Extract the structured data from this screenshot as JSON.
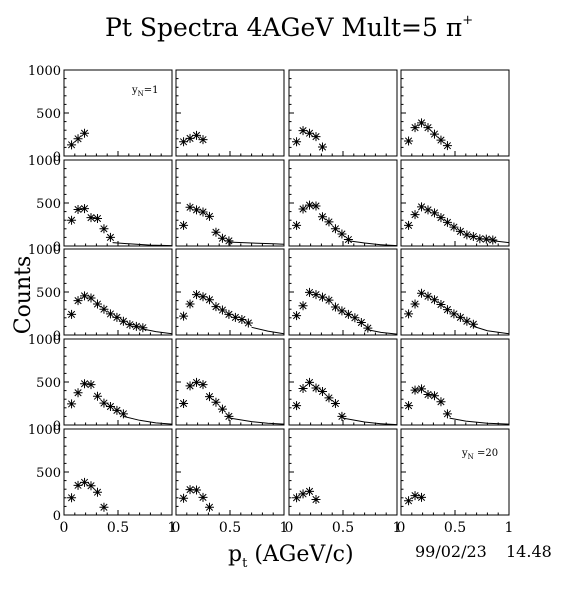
{
  "title_main": "Pt Spectra 4AGeV Mult=5 π",
  "title_sup": "+",
  "xlabel_main": "p",
  "xlabel_sub": "t",
  "xlabel_rest": " (AGeV/c)",
  "ylabel": "Counts",
  "stamp_date": "99/02/23",
  "stamp_time": "14.48",
  "annotation_first": {
    "main": "y",
    "sub": "N",
    "rest": "=1"
  },
  "annotation_last": {
    "main": "y",
    "sub": "N",
    "rest": " =20"
  },
  "chart_data": {
    "type": "scatter",
    "grid_rows": 5,
    "grid_cols": 4,
    "xlim": [
      0,
      1
    ],
    "ylim": [
      0,
      1000
    ],
    "x_ticks": [
      "0",
      "0.5",
      "1"
    ],
    "y_ticks": [
      "0",
      "500",
      "1000"
    ],
    "marker": "asterisk",
    "panels": [
      {
        "points": [
          [
            0.07,
            130
          ],
          [
            0.13,
            200
          ],
          [
            0.19,
            265
          ]
        ],
        "line": []
      },
      {
        "points": [
          [
            0.07,
            165
          ],
          [
            0.13,
            205
          ],
          [
            0.19,
            240
          ],
          [
            0.25,
            190
          ]
        ],
        "line": []
      },
      {
        "points": [
          [
            0.07,
            165
          ],
          [
            0.13,
            295
          ],
          [
            0.19,
            265
          ],
          [
            0.25,
            225
          ],
          [
            0.31,
            105
          ]
        ],
        "line": []
      },
      {
        "points": [
          [
            0.07,
            175
          ],
          [
            0.13,
            330
          ],
          [
            0.19,
            385
          ],
          [
            0.25,
            330
          ],
          [
            0.31,
            255
          ],
          [
            0.37,
            185
          ],
          [
            0.43,
            120
          ]
        ],
        "line": []
      },
      {
        "points": [
          [
            0.07,
            300
          ],
          [
            0.13,
            425
          ],
          [
            0.19,
            435
          ],
          [
            0.25,
            330
          ],
          [
            0.31,
            320
          ],
          [
            0.37,
            200
          ],
          [
            0.43,
            100
          ]
        ],
        "line": [
          [
            0.45,
            40
          ],
          [
            0.6,
            25
          ],
          [
            0.8,
            10
          ],
          [
            1.0,
            5
          ]
        ]
      },
      {
        "points": [
          [
            0.07,
            240
          ],
          [
            0.13,
            450
          ],
          [
            0.19,
            420
          ],
          [
            0.25,
            395
          ],
          [
            0.31,
            345
          ],
          [
            0.37,
            160
          ],
          [
            0.43,
            90
          ],
          [
            0.49,
            60
          ]
        ],
        "line": [
          [
            0.5,
            45
          ],
          [
            0.7,
            35
          ],
          [
            0.9,
            25
          ],
          [
            1.0,
            20
          ]
        ]
      },
      {
        "points": [
          [
            0.07,
            240
          ],
          [
            0.13,
            430
          ],
          [
            0.19,
            475
          ],
          [
            0.25,
            465
          ],
          [
            0.31,
            340
          ],
          [
            0.37,
            280
          ],
          [
            0.43,
            200
          ],
          [
            0.49,
            140
          ],
          [
            0.55,
            75
          ]
        ],
        "line": [
          [
            0.55,
            60
          ],
          [
            0.7,
            35
          ],
          [
            0.85,
            15
          ],
          [
            1.0,
            5
          ]
        ]
      },
      {
        "points": [
          [
            0.07,
            240
          ],
          [
            0.13,
            365
          ],
          [
            0.19,
            455
          ],
          [
            0.25,
            420
          ],
          [
            0.31,
            385
          ],
          [
            0.37,
            330
          ],
          [
            0.43,
            275
          ],
          [
            0.49,
            220
          ],
          [
            0.55,
            170
          ],
          [
            0.61,
            130
          ],
          [
            0.67,
            110
          ],
          [
            0.73,
            85
          ],
          [
            0.79,
            80
          ],
          [
            0.85,
            70
          ]
        ],
        "line": [
          [
            0.85,
            60
          ],
          [
            1.0,
            40
          ]
        ]
      },
      {
        "points": [
          [
            0.07,
            240
          ],
          [
            0.13,
            400
          ],
          [
            0.19,
            455
          ],
          [
            0.25,
            430
          ],
          [
            0.31,
            360
          ],
          [
            0.37,
            300
          ],
          [
            0.43,
            245
          ],
          [
            0.49,
            205
          ],
          [
            0.55,
            160
          ],
          [
            0.61,
            120
          ],
          [
            0.67,
            100
          ],
          [
            0.73,
            85
          ]
        ],
        "line": [
          [
            0.73,
            70
          ],
          [
            0.85,
            40
          ],
          [
            1.0,
            15
          ]
        ]
      },
      {
        "points": [
          [
            0.07,
            220
          ],
          [
            0.13,
            360
          ],
          [
            0.19,
            470
          ],
          [
            0.25,
            445
          ],
          [
            0.31,
            410
          ],
          [
            0.37,
            330
          ],
          [
            0.43,
            290
          ],
          [
            0.49,
            240
          ],
          [
            0.55,
            205
          ],
          [
            0.61,
            180
          ],
          [
            0.67,
            140
          ]
        ],
        "line": [
          [
            0.7,
            90
          ],
          [
            0.85,
            45
          ],
          [
            1.0,
            15
          ]
        ]
      },
      {
        "points": [
          [
            0.07,
            225
          ],
          [
            0.13,
            340
          ],
          [
            0.19,
            495
          ],
          [
            0.25,
            470
          ],
          [
            0.31,
            440
          ],
          [
            0.37,
            405
          ],
          [
            0.43,
            325
          ],
          [
            0.49,
            280
          ],
          [
            0.55,
            240
          ],
          [
            0.61,
            200
          ],
          [
            0.67,
            145
          ],
          [
            0.73,
            80
          ]
        ],
        "line": [
          [
            0.73,
            60
          ],
          [
            0.85,
            30
          ],
          [
            1.0,
            10
          ]
        ]
      },
      {
        "points": [
          [
            0.07,
            245
          ],
          [
            0.13,
            360
          ],
          [
            0.19,
            485
          ],
          [
            0.25,
            450
          ],
          [
            0.31,
            410
          ],
          [
            0.37,
            355
          ],
          [
            0.43,
            295
          ],
          [
            0.49,
            245
          ],
          [
            0.55,
            205
          ],
          [
            0.61,
            160
          ],
          [
            0.67,
            125
          ]
        ],
        "line": [
          [
            0.67,
            100
          ],
          [
            0.8,
            50
          ],
          [
            1.0,
            15
          ]
        ]
      },
      {
        "points": [
          [
            0.07,
            245
          ],
          [
            0.13,
            375
          ],
          [
            0.19,
            480
          ],
          [
            0.25,
            470
          ],
          [
            0.31,
            335
          ],
          [
            0.37,
            255
          ],
          [
            0.43,
            215
          ],
          [
            0.49,
            170
          ],
          [
            0.55,
            130
          ]
        ],
        "line": [
          [
            0.55,
            100
          ],
          [
            0.7,
            55
          ],
          [
            0.85,
            25
          ],
          [
            1.0,
            10
          ]
        ]
      },
      {
        "points": [
          [
            0.07,
            250
          ],
          [
            0.13,
            455
          ],
          [
            0.19,
            495
          ],
          [
            0.25,
            470
          ],
          [
            0.31,
            330
          ],
          [
            0.37,
            265
          ],
          [
            0.43,
            185
          ],
          [
            0.49,
            100
          ]
        ],
        "line": [
          [
            0.5,
            80
          ],
          [
            0.7,
            40
          ],
          [
            0.85,
            20
          ],
          [
            1.0,
            10
          ]
        ]
      },
      {
        "points": [
          [
            0.07,
            225
          ],
          [
            0.13,
            425
          ],
          [
            0.19,
            495
          ],
          [
            0.25,
            430
          ],
          [
            0.31,
            390
          ],
          [
            0.37,
            315
          ],
          [
            0.43,
            250
          ],
          [
            0.49,
            100
          ]
        ],
        "line": [
          [
            0.5,
            80
          ],
          [
            0.7,
            35
          ],
          [
            0.85,
            15
          ],
          [
            1.0,
            5
          ]
        ]
      },
      {
        "points": [
          [
            0.07,
            225
          ],
          [
            0.13,
            405
          ],
          [
            0.19,
            420
          ],
          [
            0.25,
            355
          ],
          [
            0.31,
            340
          ],
          [
            0.37,
            270
          ],
          [
            0.43,
            130
          ]
        ],
        "line": [
          [
            0.45,
            80
          ],
          [
            0.6,
            45
          ],
          [
            0.8,
            20
          ],
          [
            1.0,
            10
          ]
        ]
      },
      {
        "points": [
          [
            0.07,
            200
          ],
          [
            0.13,
            345
          ],
          [
            0.19,
            380
          ],
          [
            0.25,
            340
          ],
          [
            0.31,
            265
          ],
          [
            0.37,
            90
          ]
        ],
        "line": []
      },
      {
        "points": [
          [
            0.07,
            195
          ],
          [
            0.13,
            295
          ],
          [
            0.19,
            290
          ],
          [
            0.25,
            205
          ],
          [
            0.31,
            90
          ]
        ],
        "line": []
      },
      {
        "points": [
          [
            0.07,
            200
          ],
          [
            0.13,
            245
          ],
          [
            0.19,
            275
          ],
          [
            0.25,
            180
          ]
        ],
        "line": []
      },
      {
        "points": [
          [
            0.07,
            165
          ],
          [
            0.13,
            225
          ],
          [
            0.19,
            205
          ]
        ],
        "line": []
      }
    ]
  }
}
